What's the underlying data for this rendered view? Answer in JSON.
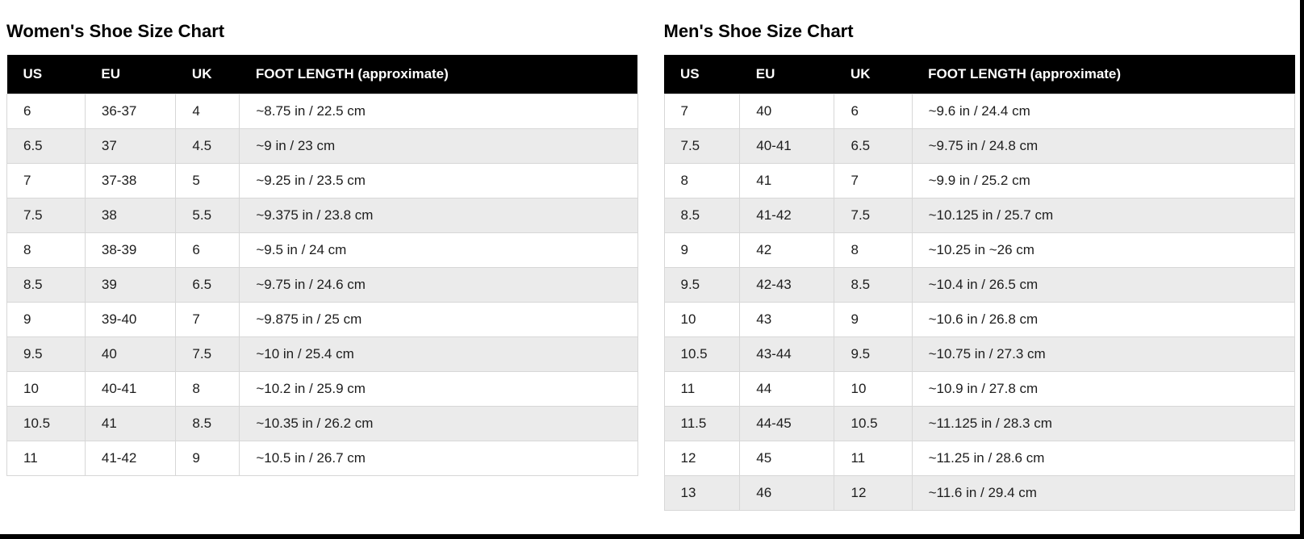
{
  "colors": {
    "header_bg": "#000000",
    "header_text": "#ffffff",
    "row_alt_bg": "#ebebeb",
    "cell_border": "#d7d7d7",
    "edge_bar": "#000000"
  },
  "tables": [
    {
      "title": "Women's Shoe Size Chart",
      "columns": [
        "US",
        "EU",
        "UK",
        "FOOT LENGTH (approximate)"
      ],
      "rows": [
        [
          "6",
          "36-37",
          "4",
          "~8.75 in / 22.5 cm"
        ],
        [
          "6.5",
          "37",
          "4.5",
          "~9 in / 23 cm"
        ],
        [
          "7",
          "37-38",
          "5",
          "~9.25 in / 23.5 cm"
        ],
        [
          "7.5",
          "38",
          "5.5",
          "~9.375 in / 23.8 cm"
        ],
        [
          "8",
          "38-39",
          "6",
          "~9.5 in / 24 cm"
        ],
        [
          "8.5",
          "39",
          "6.5",
          "~9.75 in / 24.6 cm"
        ],
        [
          "9",
          "39-40",
          "7",
          "~9.875 in / 25 cm"
        ],
        [
          "9.5",
          "40",
          "7.5",
          "~10 in / 25.4 cm"
        ],
        [
          "10",
          "40-41",
          "8",
          "~10.2 in / 25.9 cm"
        ],
        [
          "10.5",
          "41",
          "8.5",
          "~10.35 in / 26.2 cm"
        ],
        [
          "11",
          "41-42",
          "9",
          "~10.5 in / 26.7 cm"
        ]
      ]
    },
    {
      "title": "Men's Shoe Size Chart",
      "columns": [
        "US",
        "EU",
        "UK",
        "FOOT LENGTH (approximate)"
      ],
      "rows": [
        [
          "7",
          "40",
          "6",
          "~9.6 in / 24.4 cm"
        ],
        [
          "7.5",
          "40-41",
          "6.5",
          "~9.75 in / 24.8 cm"
        ],
        [
          "8",
          "41",
          "7",
          "~9.9 in / 25.2 cm"
        ],
        [
          "8.5",
          "41-42",
          "7.5",
          "~10.125 in / 25.7 cm"
        ],
        [
          "9",
          "42",
          "8",
          "~10.25 in ~26 cm"
        ],
        [
          "9.5",
          "42-43",
          "8.5",
          "~10.4 in / 26.5 cm"
        ],
        [
          "10",
          "43",
          "9",
          "~10.6 in / 26.8 cm"
        ],
        [
          "10.5",
          "43-44",
          "9.5",
          "~10.75 in / 27.3 cm"
        ],
        [
          "11",
          "44",
          "10",
          "~10.9 in / 27.8 cm"
        ],
        [
          "11.5",
          "44-45",
          "10.5",
          "~11.125 in / 28.3 cm"
        ],
        [
          "12",
          "45",
          "11",
          "~11.25 in / 28.6 cm"
        ],
        [
          "13",
          "46",
          "12",
          "~11.6 in / 29.4 cm"
        ]
      ]
    }
  ]
}
